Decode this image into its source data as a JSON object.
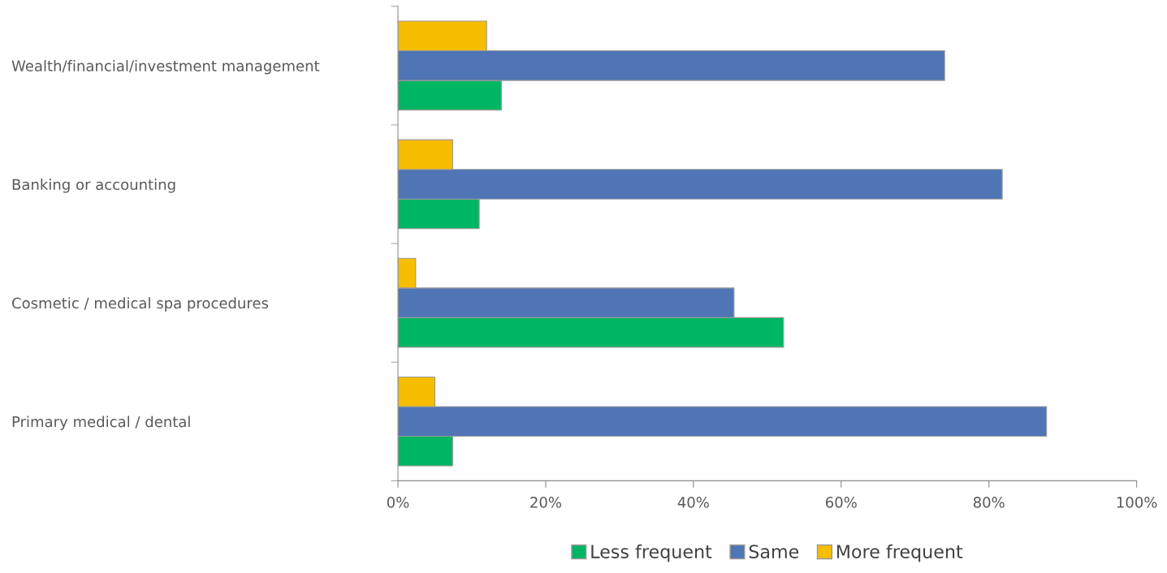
{
  "chart_data": {
    "type": "bar",
    "orientation": "horizontal",
    "categories": [
      "Wealth/financial/investment management",
      "Banking or accounting",
      "Cosmetic / medical spa procedures",
      "Primary medical / dental"
    ],
    "series": [
      {
        "name": "Less frequent",
        "color": "#00b563",
        "values": [
          14,
          11,
          52.2,
          7.4
        ]
      },
      {
        "name": "Same",
        "color": "#4f75b5",
        "values": [
          74,
          81.8,
          45.5,
          87.8
        ]
      },
      {
        "name": "More frequent",
        "color": "#f7bd00",
        "values": [
          12,
          7.4,
          2.4,
          5
        ]
      }
    ],
    "xlim": [
      0,
      100
    ],
    "xticks": [
      {
        "value": 0,
        "label": "0%"
      },
      {
        "value": 20,
        "label": "20%"
      },
      {
        "value": 40,
        "label": "40%"
      },
      {
        "value": 60,
        "label": "60%"
      },
      {
        "value": 80,
        "label": "80%"
      },
      {
        "value": 100,
        "label": "100%"
      }
    ],
    "grid": false,
    "legend": "bottom"
  }
}
